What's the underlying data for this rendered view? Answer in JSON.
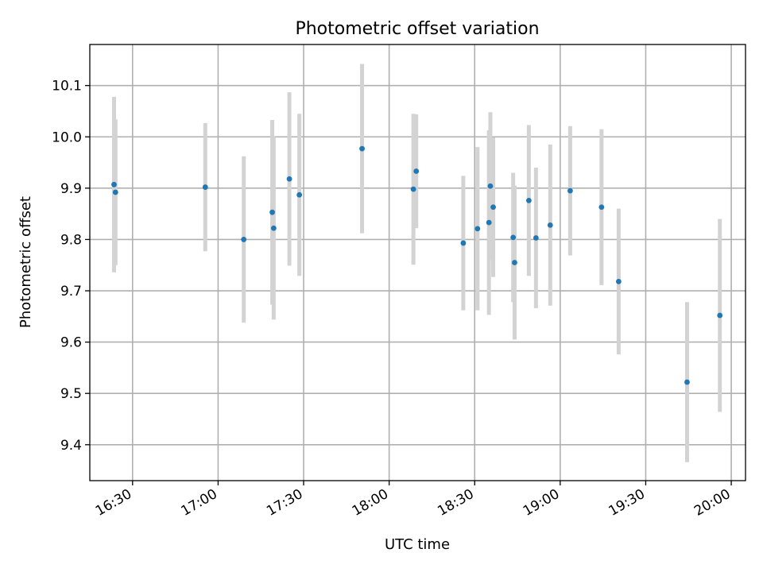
{
  "chart_data": {
    "type": "scatter",
    "title": "Photometric offset variation",
    "xlabel": "UTC time",
    "ylabel": "Photometric offset",
    "xlim": [
      "16:15",
      "20:05"
    ],
    "ylim": [
      9.33,
      10.18
    ],
    "grid": true,
    "x_ticks": [
      "16:30",
      "17:00",
      "17:30",
      "18:00",
      "18:30",
      "19:00",
      "19:30",
      "20:00"
    ],
    "y_ticks": [
      9.4,
      9.5,
      9.6,
      9.7,
      9.8,
      9.9,
      10.0,
      10.1
    ],
    "y_tick_labels": [
      "9.4",
      "9.5",
      "9.6",
      "9.7",
      "9.8",
      "9.9",
      "10.0",
      "10.1"
    ],
    "marker_color": "#1f77b4",
    "errorbar_color": "#d3d3d3",
    "series": [
      {
        "x": [
          "16:23:30",
          "16:24:00",
          "16:55:30",
          "17:09:00",
          "17:19:00",
          "17:19:30",
          "17:25:00",
          "17:28:30",
          "17:50:30",
          "18:08:30",
          "18:09:30",
          "18:26:00",
          "18:31:00",
          "18:35:00",
          "18:35:30",
          "18:36:30",
          "18:43:30",
          "18:44:00",
          "18:49:00",
          "18:51:30",
          "18:56:30",
          "19:03:30",
          "19:14:30",
          "19:20:30",
          "19:44:30",
          "19:56:00"
        ],
        "y": [
          9.907,
          9.892,
          9.902,
          9.8,
          9.853,
          9.822,
          9.918,
          9.887,
          9.977,
          9.898,
          9.933,
          9.793,
          9.821,
          9.833,
          9.904,
          9.863,
          9.804,
          9.755,
          9.876,
          9.803,
          9.828,
          9.895,
          9.863,
          9.718,
          9.522,
          9.652
        ],
        "yerr": [
          0.171,
          0.142,
          0.125,
          0.162,
          0.18,
          0.178,
          0.169,
          0.158,
          0.165,
          0.147,
          0.111,
          0.131,
          0.159,
          0.18,
          0.144,
          0.136,
          0.126,
          0.15,
          0.147,
          0.137,
          0.157,
          0.126,
          0.152,
          0.142,
          0.156,
          0.188
        ]
      }
    ]
  }
}
